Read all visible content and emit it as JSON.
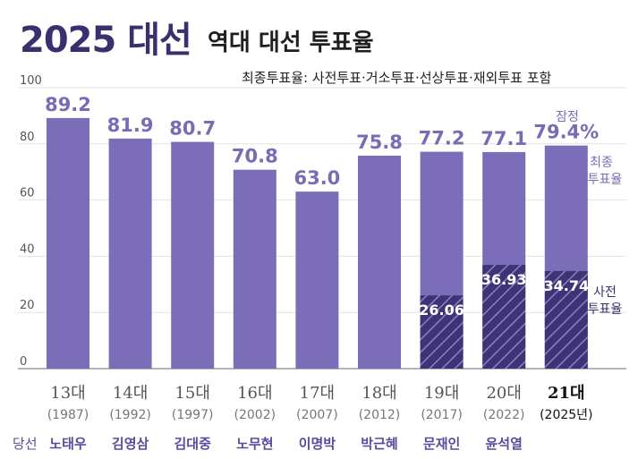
{
  "header": {
    "title_year": "2025 대선",
    "title_main": "역대 대선 투표율",
    "subtitle": "최종투표율: 사전투표·거소투표·선상투표·재외투표 포함"
  },
  "winner_row_label": "당선",
  "legend": {
    "final_label_1": "최종",
    "final_label_2": "투표율",
    "early_label_1": "사전",
    "early_label_2": "투표율",
    "provisional": "잠정"
  },
  "colors": {
    "bar": "#7b6db8",
    "early": "#3e3475",
    "title_accent": "#3b2f6e"
  },
  "chart_data": {
    "type": "bar",
    "title": "역대 대선 투표율",
    "ylim": [
      0,
      100
    ],
    "yticks": [
      "0",
      "20",
      "40",
      "60",
      "80",
      "100"
    ],
    "categories": [
      "13대",
      "14대",
      "15대",
      "16대",
      "17대",
      "18대",
      "19대",
      "20대",
      "21대"
    ],
    "years": [
      "(1987)",
      "(1992)",
      "(1997)",
      "(2002)",
      "(2007)",
      "(2012)",
      "(2017)",
      "(2022)",
      "(2025년)"
    ],
    "winners": [
      "노태우",
      "김영삼",
      "김대중",
      "노무현",
      "이명박",
      "박근혜",
      "문재인",
      "윤석열",
      ""
    ],
    "series": [
      {
        "name": "최종 투표율",
        "values": [
          89.2,
          81.9,
          80.7,
          70.8,
          63.0,
          75.8,
          77.2,
          77.1,
          79.4
        ],
        "labels": [
          "89.2",
          "81.9",
          "80.7",
          "70.8",
          "63.0",
          "75.8",
          "77.2",
          "77.1",
          "79.4%"
        ]
      },
      {
        "name": "사전 투표율",
        "values": [
          null,
          null,
          null,
          null,
          null,
          null,
          26.06,
          36.93,
          34.74
        ],
        "labels": [
          "",
          "",
          "",
          "",
          "",
          "",
          "26.06",
          "36.93",
          "34.74"
        ]
      }
    ]
  }
}
